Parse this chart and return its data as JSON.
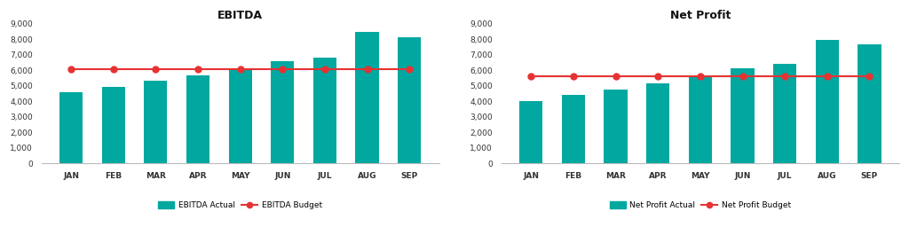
{
  "months": [
    "JAN",
    "FEB",
    "MAR",
    "APR",
    "MAY",
    "JUN",
    "JUL",
    "AUG",
    "SEP"
  ],
  "ebitda_actual": [
    4600,
    4900,
    5300,
    5650,
    6050,
    6600,
    6800,
    8450,
    8100
  ],
  "ebitda_budget": [
    6050,
    6050,
    6050,
    6050,
    6050,
    6050,
    6050,
    6050,
    6050
  ],
  "net_profit_actual": [
    4000,
    4400,
    4750,
    5150,
    5600,
    6100,
    6400,
    7950,
    7650
  ],
  "net_profit_budget": [
    5600,
    5600,
    5600,
    5600,
    5600,
    5600,
    5600,
    5600,
    5600
  ],
  "bar_color": "#00a8a0",
  "line_color": "#e63232",
  "marker_color": "#e63232",
  "background_color": "#ffffff",
  "ebitda_title": "EBITDA",
  "netprofit_title": "Net Profit",
  "ebitda_actual_label": "EBITDA Actual",
  "ebitda_budget_label": "EBITDA Budget",
  "net_profit_actual_label": "Net Profit Actual",
  "net_profit_budget_label": "Net Profit Budget",
  "ylim": [
    0,
    9000
  ],
  "yticks": [
    0,
    1000,
    2000,
    3000,
    4000,
    5000,
    6000,
    7000,
    8000,
    9000
  ],
  "title_fontsize": 9,
  "tick_fontsize": 6.5,
  "legend_fontsize": 6.5,
  "bar_width": 0.55
}
